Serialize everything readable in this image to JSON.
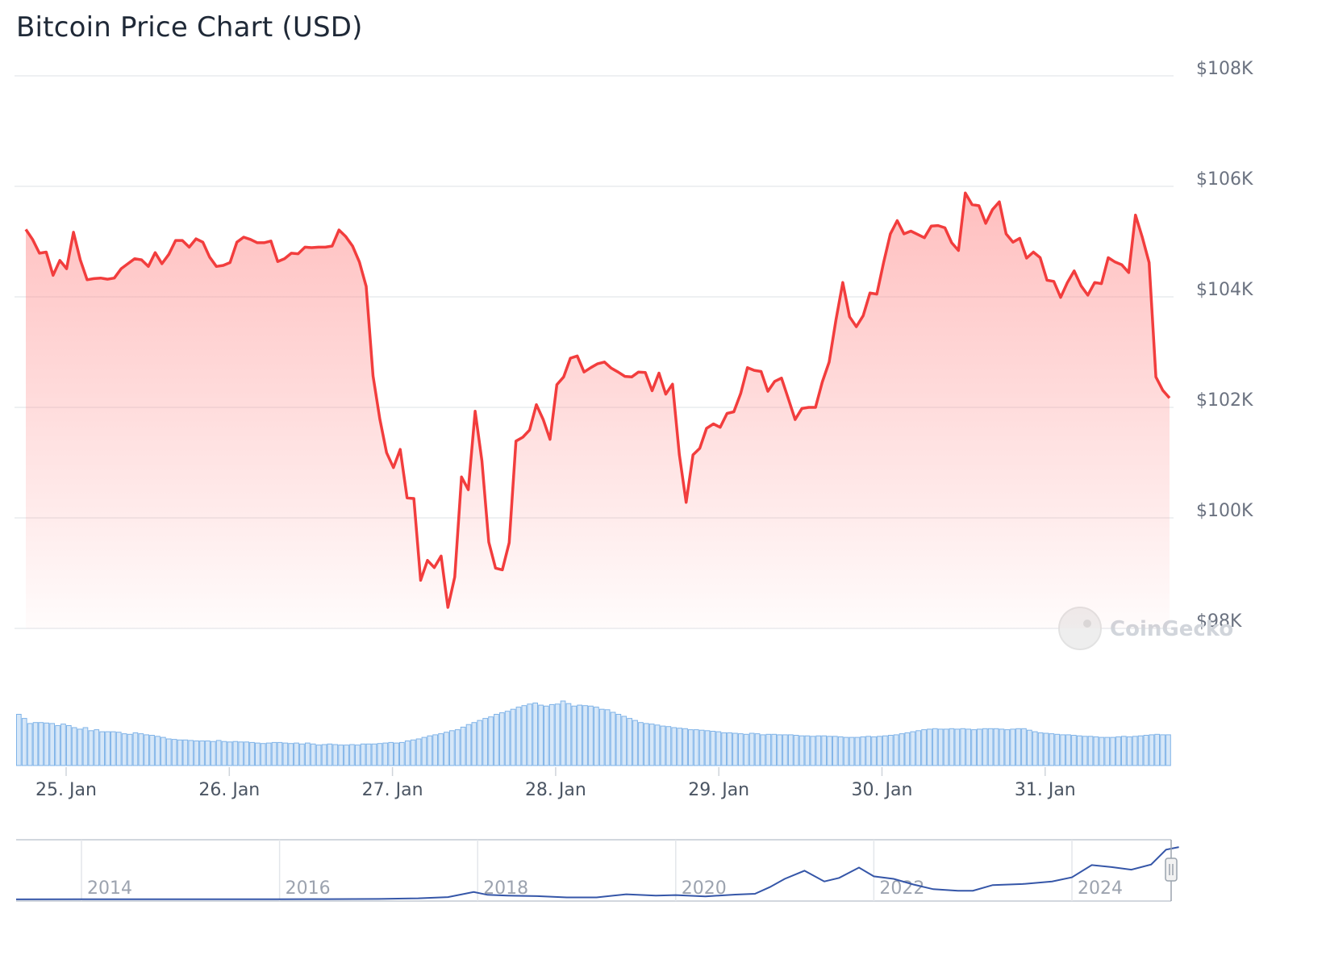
{
  "title": "Bitcoin Price Chart (USD)",
  "watermark": "CoinGecko",
  "chart_data": [
    {
      "type": "area",
      "title": "Bitcoin Price Chart (USD)",
      "series": [
        {
          "x_start": "2025-01-24T15:00",
          "interval_hours": 1,
          "values": [
            105220,
            105040,
            104790,
            104810,
            104390,
            104660,
            104510,
            105170,
            104670,
            104310,
            104330,
            104340,
            104320,
            104340,
            104510,
            104600,
            104690,
            104670,
            104550,
            104800,
            104600,
            104770,
            105020,
            105020,
            104900,
            105050,
            104990,
            104720,
            104550,
            104570,
            104620,
            104990,
            105080,
            105040,
            104980,
            104980,
            105010,
            104640,
            104690,
            104790,
            104780,
            104900,
            104890,
            104900,
            104900,
            104920,
            105210,
            105090,
            104920,
            104630,
            104190,
            102570,
            101790,
            101180,
            100910,
            101240,
            100360,
            100350,
            98870,
            99230,
            99100,
            99310,
            98380,
            98930,
            100740,
            100510,
            101930,
            101030,
            99560,
            99090,
            99060,
            99550,
            101390,
            101460,
            101590,
            102050,
            101780,
            101420,
            102410,
            102550,
            102890,
            102930,
            102640,
            102720,
            102790,
            102820,
            102710,
            102640,
            102560,
            102550,
            102640,
            102630,
            102300,
            102620,
            102240,
            102420,
            101140,
            100280,
            101140,
            101260,
            101620,
            101700,
            101640,
            101890,
            101920,
            102250,
            102720,
            102670,
            102650,
            102290,
            102470,
            102530,
            102160,
            101780,
            101980,
            102000,
            102000,
            102460,
            102820,
            103580,
            104260,
            103640,
            103460,
            103660,
            104070,
            104050,
            104620,
            105140,
            105380,
            105140,
            105190,
            105130,
            105070,
            105280,
            105290,
            105250,
            104980,
            104840,
            105880,
            105670,
            105650,
            105330,
            105580,
            105720,
            105140,
            104990,
            105060,
            104700,
            104810,
            104710,
            104300,
            104280,
            103990,
            104260,
            104470,
            104200,
            104030,
            104260,
            104240,
            104710,
            104630,
            104580,
            104440,
            105480,
            105080,
            104620,
            102550,
            102310,
            102170
          ]
        }
      ],
      "x_ticks": [
        "25. Jan",
        "26. Jan",
        "27. Jan",
        "28. Jan",
        "29. Jan",
        "30. Jan",
        "31. Jan"
      ],
      "y_ticks": [
        "$98K",
        "$100K",
        "$102K",
        "$104K",
        "$106K",
        "$108K"
      ],
      "ylim": [
        98000,
        108000
      ],
      "grid": true,
      "colors": {
        "line": "#f23d3d",
        "fill": "#ff8a8a"
      }
    },
    {
      "type": "bar",
      "title": "",
      "description": "volume",
      "values": [
        100,
        92,
        82,
        84,
        84,
        83,
        82,
        78,
        81,
        78,
        74,
        71,
        74,
        68,
        70,
        66,
        66,
        66,
        65,
        62,
        61,
        64,
        62,
        60,
        59,
        57,
        55,
        52,
        51,
        50,
        50,
        49,
        48,
        48,
        48,
        47,
        49,
        47,
        46,
        47,
        46,
        46,
        45,
        44,
        43,
        44,
        45,
        45,
        44,
        43,
        44,
        42,
        44,
        42,
        40,
        41,
        42,
        41,
        40,
        40,
        41,
        40,
        42,
        42,
        42,
        43,
        44,
        45,
        44,
        45,
        48,
        50,
        52,
        55,
        58,
        60,
        62,
        65,
        68,
        70,
        75,
        80,
        84,
        88,
        92,
        95,
        100,
        103,
        106,
        110,
        114,
        117,
        120,
        122,
        118,
        116,
        119,
        120,
        126,
        121,
        116,
        118,
        117,
        116,
        114,
        110,
        109,
        104,
        100,
        96,
        92,
        88,
        84,
        82,
        81,
        79,
        77,
        76,
        74,
        73,
        72,
        70,
        70,
        69,
        68,
        67,
        66,
        64,
        64,
        63,
        62,
        61,
        63,
        62,
        60,
        61,
        61,
        60,
        60,
        60,
        59,
        58,
        58,
        57,
        58,
        58,
        57,
        57,
        56,
        55,
        55,
        55,
        56,
        57,
        56,
        57,
        58,
        59,
        60,
        62,
        64,
        66,
        68,
        70,
        71,
        72,
        71,
        71,
        72,
        71,
        72,
        71,
        70,
        71,
        72,
        72,
        72,
        71,
        70,
        71,
        72,
        72,
        69,
        66,
        64,
        63,
        62,
        61,
        60,
        60,
        59,
        58,
        57,
        57,
        56,
        55,
        55,
        55,
        56,
        57,
        56,
        57,
        58,
        59,
        60,
        61,
        60,
        60
      ],
      "colors": {
        "bar": "#7fb3e8"
      }
    },
    {
      "type": "line",
      "title": "",
      "description": "navigator",
      "x": [
        2013.0,
        2014.0,
        2015.0,
        2016.0,
        2016.5,
        2017.0,
        2017.4,
        2017.7,
        2017.96,
        2018.1,
        2018.3,
        2018.6,
        2018.9,
        2019.2,
        2019.5,
        2019.8,
        2020.0,
        2020.3,
        2020.6,
        2020.8,
        2020.95,
        2021.1,
        2021.3,
        2021.5,
        2021.65,
        2021.85,
        2022.0,
        2022.2,
        2022.4,
        2022.6,
        2022.85,
        2023.0,
        2023.2,
        2023.5,
        2023.8,
        2024.0,
        2024.2,
        2024.4,
        2024.6,
        2024.8,
        2024.95,
        2025.08
      ],
      "values": [
        100,
        500,
        300,
        400,
        650,
        1000,
        2200,
        4500,
        14500,
        9000,
        7500,
        6500,
        4000,
        4000,
        10000,
        7500,
        8500,
        6000,
        9500,
        11000,
        24000,
        40000,
        56000,
        35000,
        42000,
        62000,
        45000,
        40000,
        29000,
        20000,
        17000,
        17000,
        28000,
        30000,
        35000,
        43000,
        67000,
        63000,
        58000,
        68000,
        97000,
        102000
      ],
      "x_ticks": [
        "2014",
        "2016",
        "2018",
        "2020",
        "2022",
        "2024"
      ],
      "colors": {
        "line": "#3556a8"
      }
    }
  ]
}
